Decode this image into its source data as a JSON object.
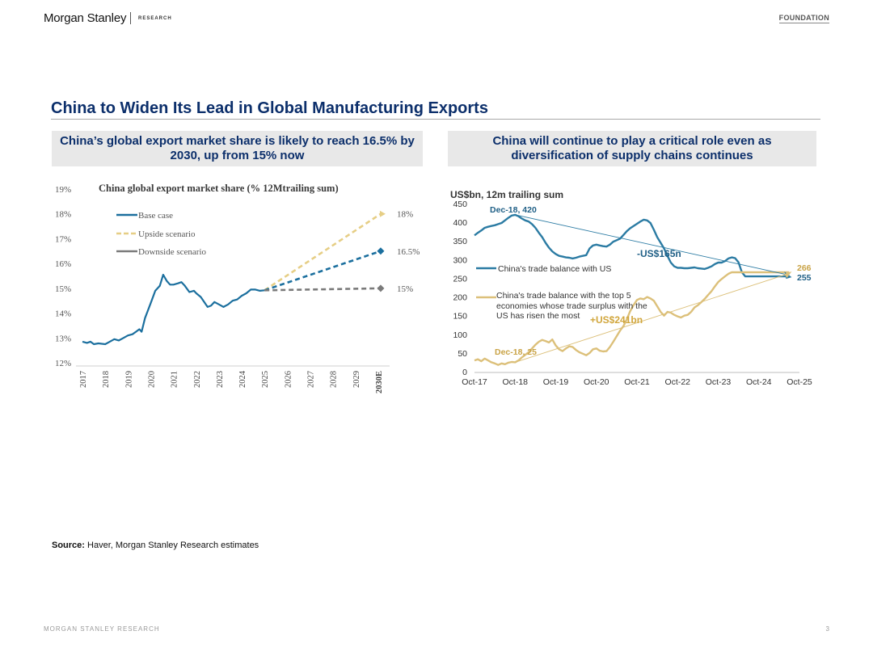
{
  "header": {
    "brand": "Morgan Stanley",
    "brand_sub": "RESEARCH",
    "badge": "FOUNDATION"
  },
  "page_title": "China to Widen Its Lead in Global Manufacturing Exports",
  "left_panel": {
    "subheading": "China’s global export market share is likely to reach 16.5% by 2030, up from 15% now"
  },
  "right_panel": {
    "subheading": "China will continue to play a critical role even as diversification of supply chains continues"
  },
  "source": {
    "label": "Source:",
    "text": "Haver, Morgan Stanley Research estimates"
  },
  "footer": {
    "left": "MORGAN STANLEY RESEARCH",
    "page_number": "3"
  },
  "colors": {
    "navy": "#0c2f6b",
    "teal": "#1b6f9e",
    "gold": "#e6ce85",
    "grey": "#7a7a7a",
    "rightBlue": "#2b7ba3",
    "rightGold": "#dcc07a"
  },
  "chart_data": [
    {
      "type": "line",
      "title": "China global export market share (% 12Mtrailing sum)",
      "xlabel": "",
      "ylabel": "",
      "x_ticks": [
        "2017",
        "2018",
        "2019",
        "2020",
        "2021",
        "2022",
        "2023",
        "2024",
        "2025",
        "2026",
        "2027",
        "2028",
        "2029",
        "2030E"
      ],
      "y_ticks": [
        "12%",
        "13%",
        "14%",
        "15%",
        "16%",
        "17%",
        "18%",
        "19%"
      ],
      "ylim": [
        12,
        19
      ],
      "legend": {
        "position": "top-left",
        "entries": [
          "Base case",
          "Upside scenario",
          "Downside scenario"
        ]
      },
      "history": {
        "name": "Base case",
        "x": [
          2017.0,
          2017.2,
          2017.35,
          2017.5,
          2017.7,
          2018.0,
          2018.2,
          2018.4,
          2018.6,
          2018.8,
          2019.0,
          2019.2,
          2019.35,
          2019.5,
          2019.6,
          2019.75,
          2020.0,
          2020.2,
          2020.4,
          2020.55,
          2020.7,
          2020.85,
          2021.0,
          2021.2,
          2021.35,
          2021.5,
          2021.7,
          2021.9,
          2022.0,
          2022.2,
          2022.35,
          2022.5,
          2022.65,
          2022.8,
          2023.0,
          2023.2,
          2023.4,
          2023.6,
          2023.8,
          2024.0,
          2024.2,
          2024.4,
          2024.6,
          2024.8,
          2025.0
        ],
        "values": [
          12.85,
          12.8,
          12.85,
          12.75,
          12.78,
          12.75,
          12.85,
          12.95,
          12.9,
          13.0,
          13.1,
          13.15,
          13.25,
          13.35,
          13.25,
          13.8,
          14.4,
          14.9,
          15.1,
          15.55,
          15.3,
          15.15,
          15.15,
          15.2,
          15.25,
          15.1,
          14.85,
          14.9,
          14.8,
          14.65,
          14.45,
          14.25,
          14.3,
          14.45,
          14.35,
          14.25,
          14.35,
          14.5,
          14.55,
          14.7,
          14.8,
          14.95,
          14.95,
          14.9,
          14.92
        ]
      },
      "scenarios": [
        {
          "name": "Upside scenario",
          "start": [
            2025,
            14.92
          ],
          "end": [
            2030,
            18
          ],
          "end_label": "18%"
        },
        {
          "name": "Base case",
          "start": [
            2025,
            14.92
          ],
          "end": [
            2030,
            16.5
          ],
          "end_label": "16.5%"
        },
        {
          "name": "Downside scenario",
          "start": [
            2025,
            14.92
          ],
          "end": [
            2030,
            15
          ],
          "end_label": "15%"
        }
      ]
    },
    {
      "type": "line",
      "title": "",
      "ylabel": "US$bn, 12m trailing sum",
      "x_ticks": [
        "Oct-17",
        "Oct-18",
        "Oct-19",
        "Oct-20",
        "Oct-21",
        "Oct-22",
        "Oct-23",
        "Oct-24",
        "Oct-25"
      ],
      "y_ticks": [
        "0",
        "50",
        "100",
        "150",
        "200",
        "250",
        "300",
        "350",
        "400",
        "450"
      ],
      "ylim": [
        0,
        450
      ],
      "series": [
        {
          "name": "China's trade balance with US",
          "t": [
            0,
            1,
            2,
            3,
            4,
            5,
            6,
            7,
            8,
            9,
            10,
            11,
            12,
            13,
            14,
            15,
            16,
            17,
            18,
            19,
            20,
            21,
            22,
            23,
            24,
            25,
            26,
            27,
            28,
            29,
            30,
            31,
            32,
            33,
            34,
            35,
            36,
            37,
            38,
            39,
            40,
            41,
            42,
            43,
            44,
            45,
            46,
            47,
            48,
            49,
            50,
            51,
            52,
            53,
            54,
            55,
            56,
            57,
            58,
            59,
            60,
            61,
            62,
            63,
            64,
            65,
            66,
            67,
            68,
            69,
            70,
            71,
            72,
            73,
            74,
            75,
            76,
            77,
            78,
            79,
            80,
            81,
            82,
            83,
            84,
            85,
            86,
            87,
            88,
            89,
            90,
            91,
            92,
            93,
            94,
            95,
            96
          ],
          "values": [
            365,
            372,
            378,
            385,
            388,
            390,
            392,
            395,
            398,
            405,
            412,
            418,
            420,
            416,
            410,
            405,
            402,
            395,
            385,
            372,
            360,
            345,
            332,
            322,
            315,
            310,
            308,
            306,
            305,
            303,
            305,
            308,
            310,
            312,
            330,
            338,
            340,
            338,
            336,
            335,
            340,
            348,
            352,
            356,
            366,
            376,
            384,
            390,
            396,
            402,
            407,
            405,
            398,
            380,
            360,
            345,
            330,
            310,
            292,
            282,
            278,
            278,
            277,
            277,
            278,
            279,
            277,
            276,
            275,
            278,
            282,
            288,
            292,
            292,
            296,
            303,
            306,
            304,
            293,
            266,
            255,
            255,
            255,
            255,
            255,
            255,
            255,
            255,
            255,
            255,
            255,
            255,
            255,
            255,
            255,
            255,
            255
          ]
        },
        {
          "name": "China's trade balance with the top 5 economies whose trade surplus with the US has risen the most",
          "t": [
            0,
            1,
            2,
            3,
            4,
            5,
            6,
            7,
            8,
            9,
            10,
            11,
            12,
            13,
            14,
            15,
            16,
            17,
            18,
            19,
            20,
            21,
            22,
            23,
            24,
            25,
            26,
            27,
            28,
            29,
            30,
            31,
            32,
            33,
            34,
            35,
            36,
            37,
            38,
            39,
            40,
            41,
            42,
            43,
            44,
            45,
            46,
            47,
            48,
            49,
            50,
            51,
            52,
            53,
            54,
            55,
            56,
            57,
            58,
            59,
            60,
            61,
            62,
            63,
            64,
            65,
            66,
            67,
            68,
            69,
            70,
            71,
            72,
            73,
            74,
            75,
            76,
            77,
            78,
            79,
            80,
            81,
            82,
            83,
            84,
            85,
            86,
            87,
            88,
            89,
            90,
            91,
            92,
            93,
            94,
            95,
            96
          ],
          "values": [
            30,
            33,
            28,
            35,
            30,
            25,
            22,
            18,
            22,
            20,
            24,
            26,
            25,
            30,
            38,
            45,
            52,
            62,
            72,
            80,
            85,
            82,
            78,
            86,
            70,
            60,
            55,
            62,
            68,
            66,
            58,
            52,
            48,
            44,
            50,
            60,
            62,
            56,
            54,
            55,
            66,
            80,
            95,
            110,
            122,
            140,
            162,
            178,
            192,
            196,
            194,
            200,
            196,
            190,
            175,
            160,
            150,
            160,
            158,
            152,
            148,
            145,
            150,
            152,
            160,
            172,
            178,
            186,
            195,
            205,
            215,
            228,
            240,
            248,
            255,
            262,
            266,
            266,
            266,
            266,
            266,
            266,
            266,
            266,
            266,
            266,
            266,
            266,
            266,
            266,
            266,
            266,
            266,
            266,
            266,
            266,
            266
          ]
        }
      ],
      "annotations": {
        "peak_label": "Dec-18, 420",
        "trough_label": "Dec-18, 25",
        "us_change": "-US$165n",
        "top5_change": "+US$241bn",
        "us_end": "255",
        "top5_end": "266"
      },
      "legend": {
        "position": "left",
        "entries": [
          "China's trade balance with US",
          "China's trade balance with the top 5 economies whose trade surplus with the US has risen the most"
        ]
      }
    }
  ]
}
